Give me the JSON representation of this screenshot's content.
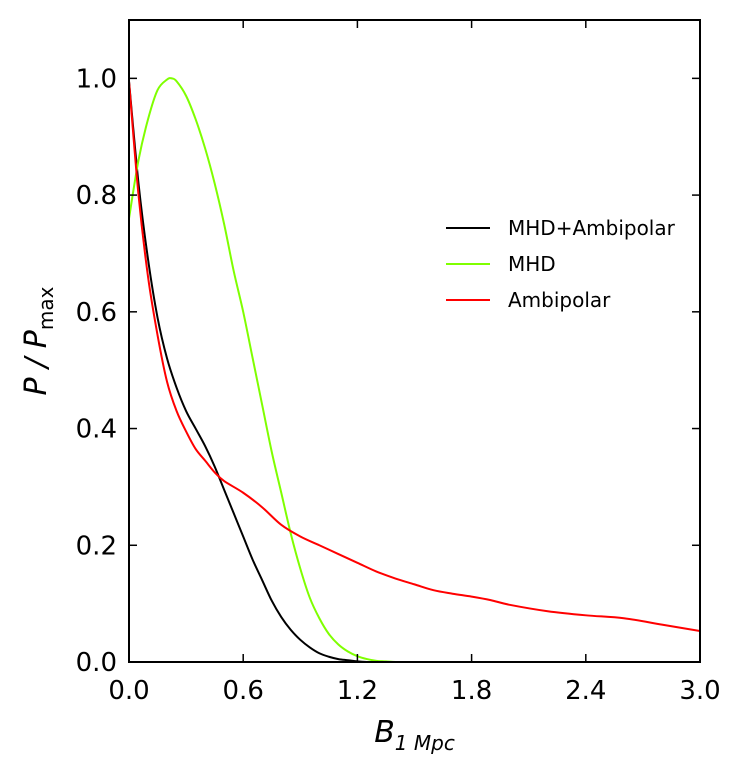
{
  "chart_data": {
    "type": "line",
    "title": "",
    "xlabel": "B",
    "xlabel_sub": "1 Mpc",
    "ylabel": "P / P",
    "ylabel_sub": "max",
    "xlim": [
      0.0,
      3.0
    ],
    "ylim": [
      0.0,
      1.1
    ],
    "xticks": [
      0.0,
      0.6,
      1.2,
      1.8,
      2.4,
      3.0
    ],
    "xtick_labels": [
      "0.0",
      "0.6",
      "1.2",
      "1.8",
      "2.4",
      "3.0"
    ],
    "yticks": [
      0.0,
      0.2,
      0.4,
      0.6,
      0.8,
      1.0
    ],
    "ytick_labels": [
      "0.0",
      "0.2",
      "0.4",
      "0.6",
      "0.8",
      "1.0"
    ],
    "grid": false,
    "legend_position": "right",
    "series": [
      {
        "name": "MHD+Ambipolar",
        "color": "#000000",
        "x": [
          0.0,
          0.05,
          0.1,
          0.15,
          0.2,
          0.25,
          0.3,
          0.35,
          0.4,
          0.45,
          0.5,
          0.55,
          0.6,
          0.65,
          0.7,
          0.75,
          0.8,
          0.85,
          0.9,
          0.95,
          1.0,
          1.05,
          1.1,
          1.15,
          1.2,
          1.25,
          1.3,
          1.35
        ],
        "y": [
          0.995,
          0.82,
          0.69,
          0.59,
          0.52,
          0.47,
          0.43,
          0.4,
          0.37,
          0.335,
          0.295,
          0.255,
          0.215,
          0.175,
          0.14,
          0.105,
          0.077,
          0.055,
          0.038,
          0.025,
          0.015,
          0.009,
          0.005,
          0.003,
          0.001,
          0.0,
          0.0,
          0.0
        ]
      },
      {
        "name": "MHD",
        "color": "#7fff00",
        "x": [
          0.0,
          0.05,
          0.1,
          0.15,
          0.2,
          0.225,
          0.25,
          0.3,
          0.35,
          0.4,
          0.45,
          0.5,
          0.55,
          0.6,
          0.65,
          0.7,
          0.75,
          0.8,
          0.85,
          0.9,
          0.95,
          1.0,
          1.05,
          1.1,
          1.15,
          1.2,
          1.25,
          1.3,
          1.35,
          1.4,
          1.45
        ],
        "y": [
          0.76,
          0.86,
          0.93,
          0.98,
          0.998,
          1.0,
          0.995,
          0.97,
          0.93,
          0.88,
          0.82,
          0.75,
          0.67,
          0.6,
          0.52,
          0.44,
          0.36,
          0.29,
          0.22,
          0.16,
          0.11,
          0.075,
          0.048,
          0.03,
          0.018,
          0.01,
          0.005,
          0.002,
          0.001,
          0.0,
          0.0
        ]
      },
      {
        "name": "Ambipolar",
        "color": "#ff0000",
        "x": [
          0.0,
          0.05,
          0.1,
          0.15,
          0.2,
          0.25,
          0.3,
          0.35,
          0.4,
          0.45,
          0.5,
          0.6,
          0.7,
          0.8,
          0.9,
          1.0,
          1.1,
          1.2,
          1.3,
          1.4,
          1.5,
          1.6,
          1.7,
          1.8,
          1.9,
          2.0,
          2.2,
          2.4,
          2.6,
          2.8,
          3.0
        ],
        "y": [
          0.995,
          0.8,
          0.66,
          0.56,
          0.48,
          0.43,
          0.395,
          0.365,
          0.345,
          0.325,
          0.31,
          0.29,
          0.265,
          0.235,
          0.215,
          0.2,
          0.185,
          0.17,
          0.155,
          0.143,
          0.133,
          0.123,
          0.117,
          0.112,
          0.106,
          0.098,
          0.087,
          0.08,
          0.075,
          0.064,
          0.053
        ]
      }
    ]
  }
}
